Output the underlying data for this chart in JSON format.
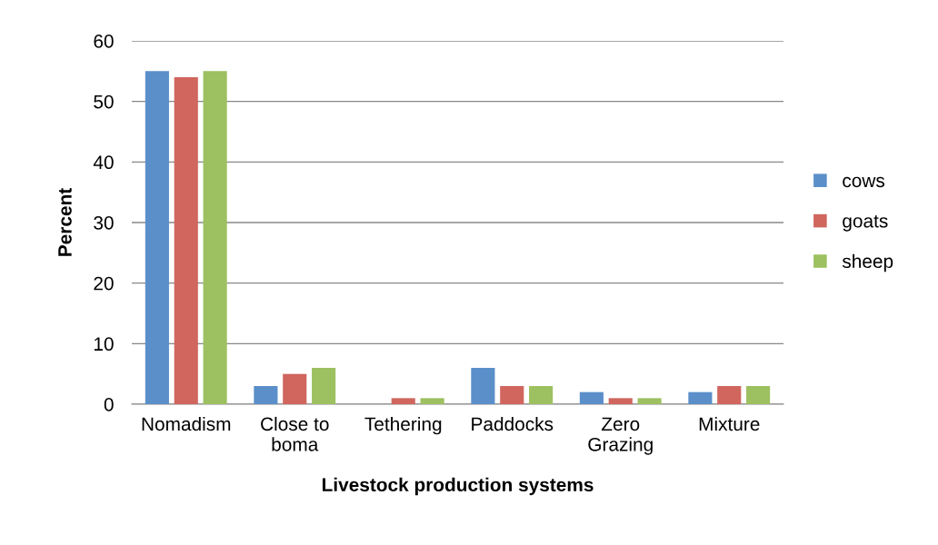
{
  "chart_data": {
    "type": "bar",
    "xlabel": "Livestock production systems",
    "ylabel": "Percent",
    "categories": [
      "Nomadism",
      "Close to\nboma",
      "Tethering",
      "Paddocks",
      "Zero\nGrazing",
      "Mixture"
    ],
    "series": [
      {
        "name": "cows",
        "color": "#5b8fc9",
        "values": [
          55,
          3,
          0,
          6,
          2,
          2
        ]
      },
      {
        "name": "goats",
        "color": "#d0665e",
        "values": [
          54,
          5,
          1,
          3,
          1,
          3
        ]
      },
      {
        "name": "sheep",
        "color": "#9dc060",
        "values": [
          55,
          6,
          1,
          3,
          1,
          3
        ]
      }
    ],
    "ylim": [
      0,
      60
    ],
    "yticks": [
      0,
      10,
      20,
      30,
      40,
      50,
      60
    ],
    "grid": "y",
    "legend": "right"
  }
}
